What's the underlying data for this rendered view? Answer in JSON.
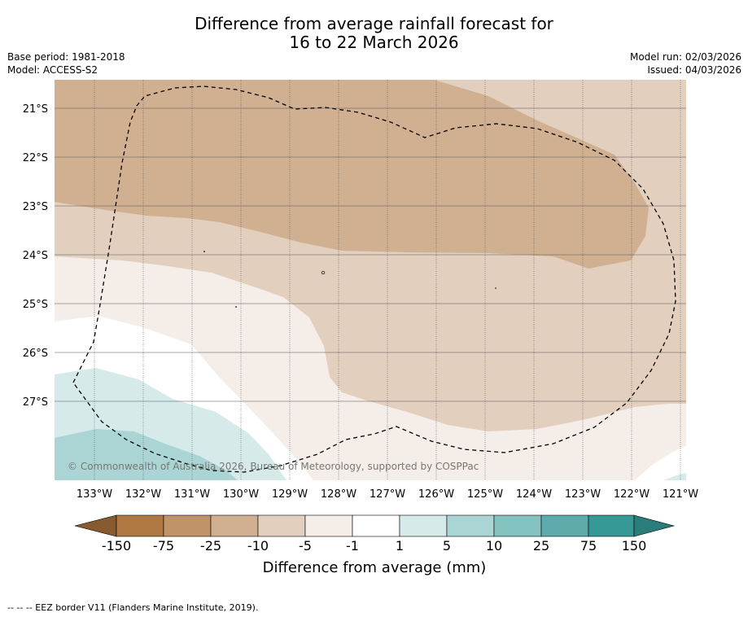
{
  "title_line1": "Difference from average rainfall forecast for",
  "title_line2": "16 to 22 March 2026",
  "base_period": "Base period: 1981-2018",
  "model": "Model: ACCESS-S2",
  "model_run": "Model run: 02/03/2026",
  "issued": "Issued: 04/03/2026",
  "copyright": "© Commonwealth of Australia 2026, Bureau of Meteorology, supported by COSPPac",
  "lat_labels": [
    "21°S",
    "22°S",
    "23°S",
    "24°S",
    "25°S",
    "26°S",
    "27°S"
  ],
  "lon_labels": [
    "133°W",
    "132°W",
    "131°W",
    "130°W",
    "129°W",
    "128°W",
    "127°W",
    "126°W",
    "125°W",
    "124°W",
    "123°W",
    "122°W",
    "121°W"
  ],
  "colorbar": {
    "labels": [
      "-150",
      "-75",
      "-25",
      "-10",
      "-5",
      "-1",
      "1",
      "5",
      "10",
      "25",
      "75",
      "150"
    ],
    "colors": [
      "#af7842",
      "#c19368",
      "#d0b091",
      "#e2cfbe",
      "#f4ede8",
      "#ffffff",
      "#d5eae9",
      "#abd5d4",
      "#84c2c0",
      "#5dacab",
      "#379996"
    ],
    "left_arrow_color": "#875a30",
    "right_arrow_color": "#2a7d7a",
    "title": "Difference from average (mm)"
  },
  "footnote": "-- -- -- EEZ border V11 (Flanders Marine Institute, 2019)."
}
